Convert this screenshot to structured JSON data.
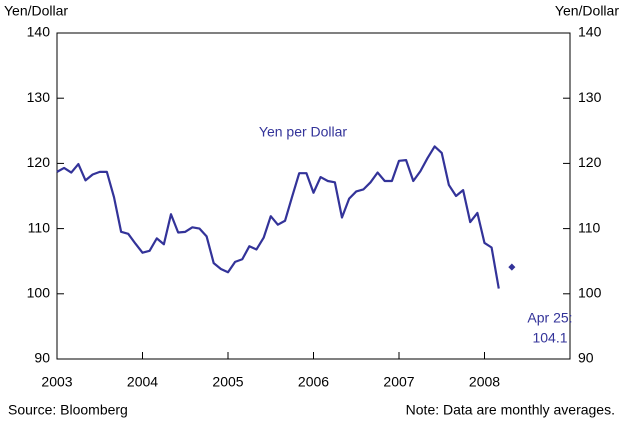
{
  "chart_data": {
    "type": "line",
    "y_label": "Yen/Dollar",
    "y2_label": "Yen/Dollar",
    "source": "Source: Bloomberg",
    "note": "Note: Data are monthly averages.",
    "xlim": [
      2003,
      2009
    ],
    "xticks": [
      2003,
      2004,
      2005,
      2006,
      2007,
      2008
    ],
    "ylim": [
      90,
      140
    ],
    "yticks": [
      90,
      100,
      110,
      120,
      130,
      140
    ],
    "y2lim": [
      90,
      140
    ],
    "y2ticks": [
      90,
      100,
      110,
      120,
      130,
      140
    ],
    "x": [
      2003,
      2003.083,
      2003.167,
      2003.25,
      2003.333,
      2003.417,
      2003.5,
      2003.583,
      2003.667,
      2003.75,
      2003.833,
      2003.917,
      2004,
      2004.083,
      2004.167,
      2004.25,
      2004.333,
      2004.417,
      2004.5,
      2004.583,
      2004.667,
      2004.75,
      2004.833,
      2004.917,
      2005,
      2005.083,
      2005.167,
      2005.25,
      2005.333,
      2005.417,
      2005.5,
      2005.583,
      2005.667,
      2005.75,
      2005.833,
      2005.917,
      2006,
      2006.083,
      2006.167,
      2006.25,
      2006.333,
      2006.417,
      2006.5,
      2006.583,
      2006.667,
      2006.75,
      2006.833,
      2006.917,
      2007,
      2007.083,
      2007.167,
      2007.25,
      2007.333,
      2007.417,
      2007.5,
      2007.583,
      2007.667,
      2007.75,
      2007.833,
      2007.917,
      2008,
      2008.083,
      2008.167
    ],
    "series": [
      {
        "name": "Yen per Dollar",
        "color": "#333399",
        "values": [
          118.7,
          119.3,
          118.6,
          119.9,
          117.4,
          118.3,
          118.7,
          118.7,
          114.8,
          109.5,
          109.2,
          107.7,
          106.3,
          106.6,
          108.5,
          107.6,
          112.2,
          109.4,
          109.5,
          110.2,
          110.0,
          108.8,
          104.7,
          103.8,
          103.3,
          104.9,
          105.3,
          107.3,
          106.8,
          108.6,
          111.9,
          110.6,
          111.2,
          114.9,
          118.5,
          118.5,
          115.5,
          117.9,
          117.3,
          117.1,
          111.7,
          114.6,
          115.7,
          116.0,
          117.1,
          118.6,
          117.3,
          117.3,
          120.4,
          120.5,
          117.3,
          118.8,
          120.8,
          122.6,
          121.6,
          116.7,
          115.0,
          115.9,
          111.0,
          112.4,
          107.8,
          107.1,
          100.8
        ]
      }
    ],
    "point": {
      "label": "Apr 25:",
      "x": 2008.32,
      "value": 104.1,
      "color": "#333399"
    }
  }
}
